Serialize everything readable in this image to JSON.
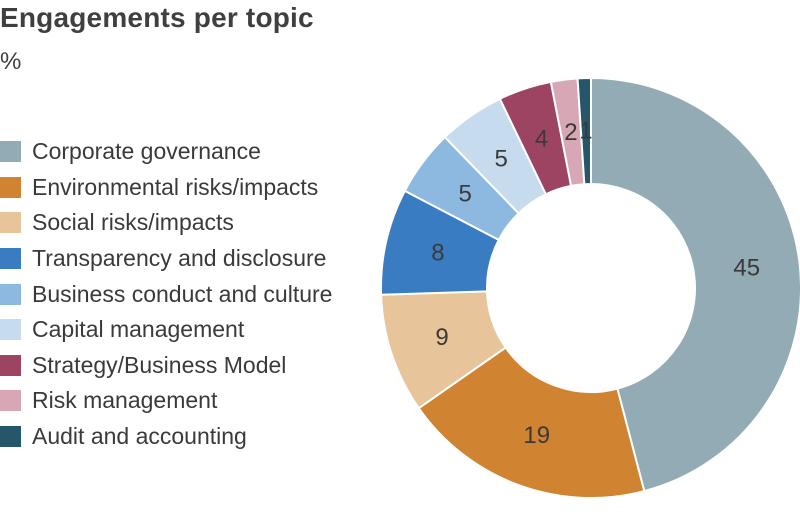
{
  "chart_data": {
    "type": "pie",
    "title": "Engagements per topic",
    "unit": "%",
    "donut": true,
    "legend_position": "left",
    "series": [
      {
        "name": "Corporate governance",
        "value": 45,
        "color": "#93abb5"
      },
      {
        "name": "Environmental risks/impacts",
        "value": 19,
        "color": "#d08330"
      },
      {
        "name": "Social risks/impacts",
        "value": 9,
        "color": "#e8c49b"
      },
      {
        "name": "Transparency and disclosure",
        "value": 8,
        "color": "#3a7cc1"
      },
      {
        "name": "Business conduct and culture",
        "value": 5,
        "color": "#8db8e0"
      },
      {
        "name": "Capital management",
        "value": 5,
        "color": "#c6dcee"
      },
      {
        "name": "Strategy/Business Model",
        "value": 4,
        "color": "#9c4462"
      },
      {
        "name": "Risk management",
        "value": 2,
        "color": "#d7a7b5"
      },
      {
        "name": "Audit and accounting",
        "value": 1,
        "color": "#26566a"
      }
    ]
  }
}
